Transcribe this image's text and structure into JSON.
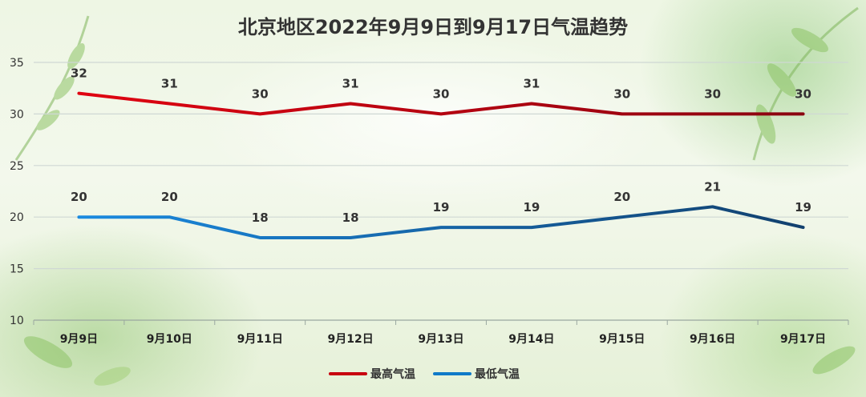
{
  "chart_data": {
    "type": "line",
    "title": "北京地区2022年9月9日到9月17日气温趋势",
    "categories": [
      "9月9日",
      "9月10日",
      "9月11日",
      "9月12日",
      "9月13日",
      "9月14日",
      "9月15日",
      "9月16日",
      "9月17日"
    ],
    "series": [
      {
        "name": "最高气温",
        "values": [
          32,
          31,
          30,
          31,
          30,
          31,
          30,
          30,
          30
        ],
        "color": "#c8000f"
      },
      {
        "name": "最低气温",
        "values": [
          20,
          20,
          18,
          18,
          19,
          19,
          20,
          21,
          19
        ],
        "color": "#0f7ac8"
      }
    ],
    "ylim": [
      10,
      35
    ],
    "yticks": [
      10,
      15,
      20,
      25,
      30,
      35
    ],
    "grid": true,
    "legend": "bottom-center"
  }
}
